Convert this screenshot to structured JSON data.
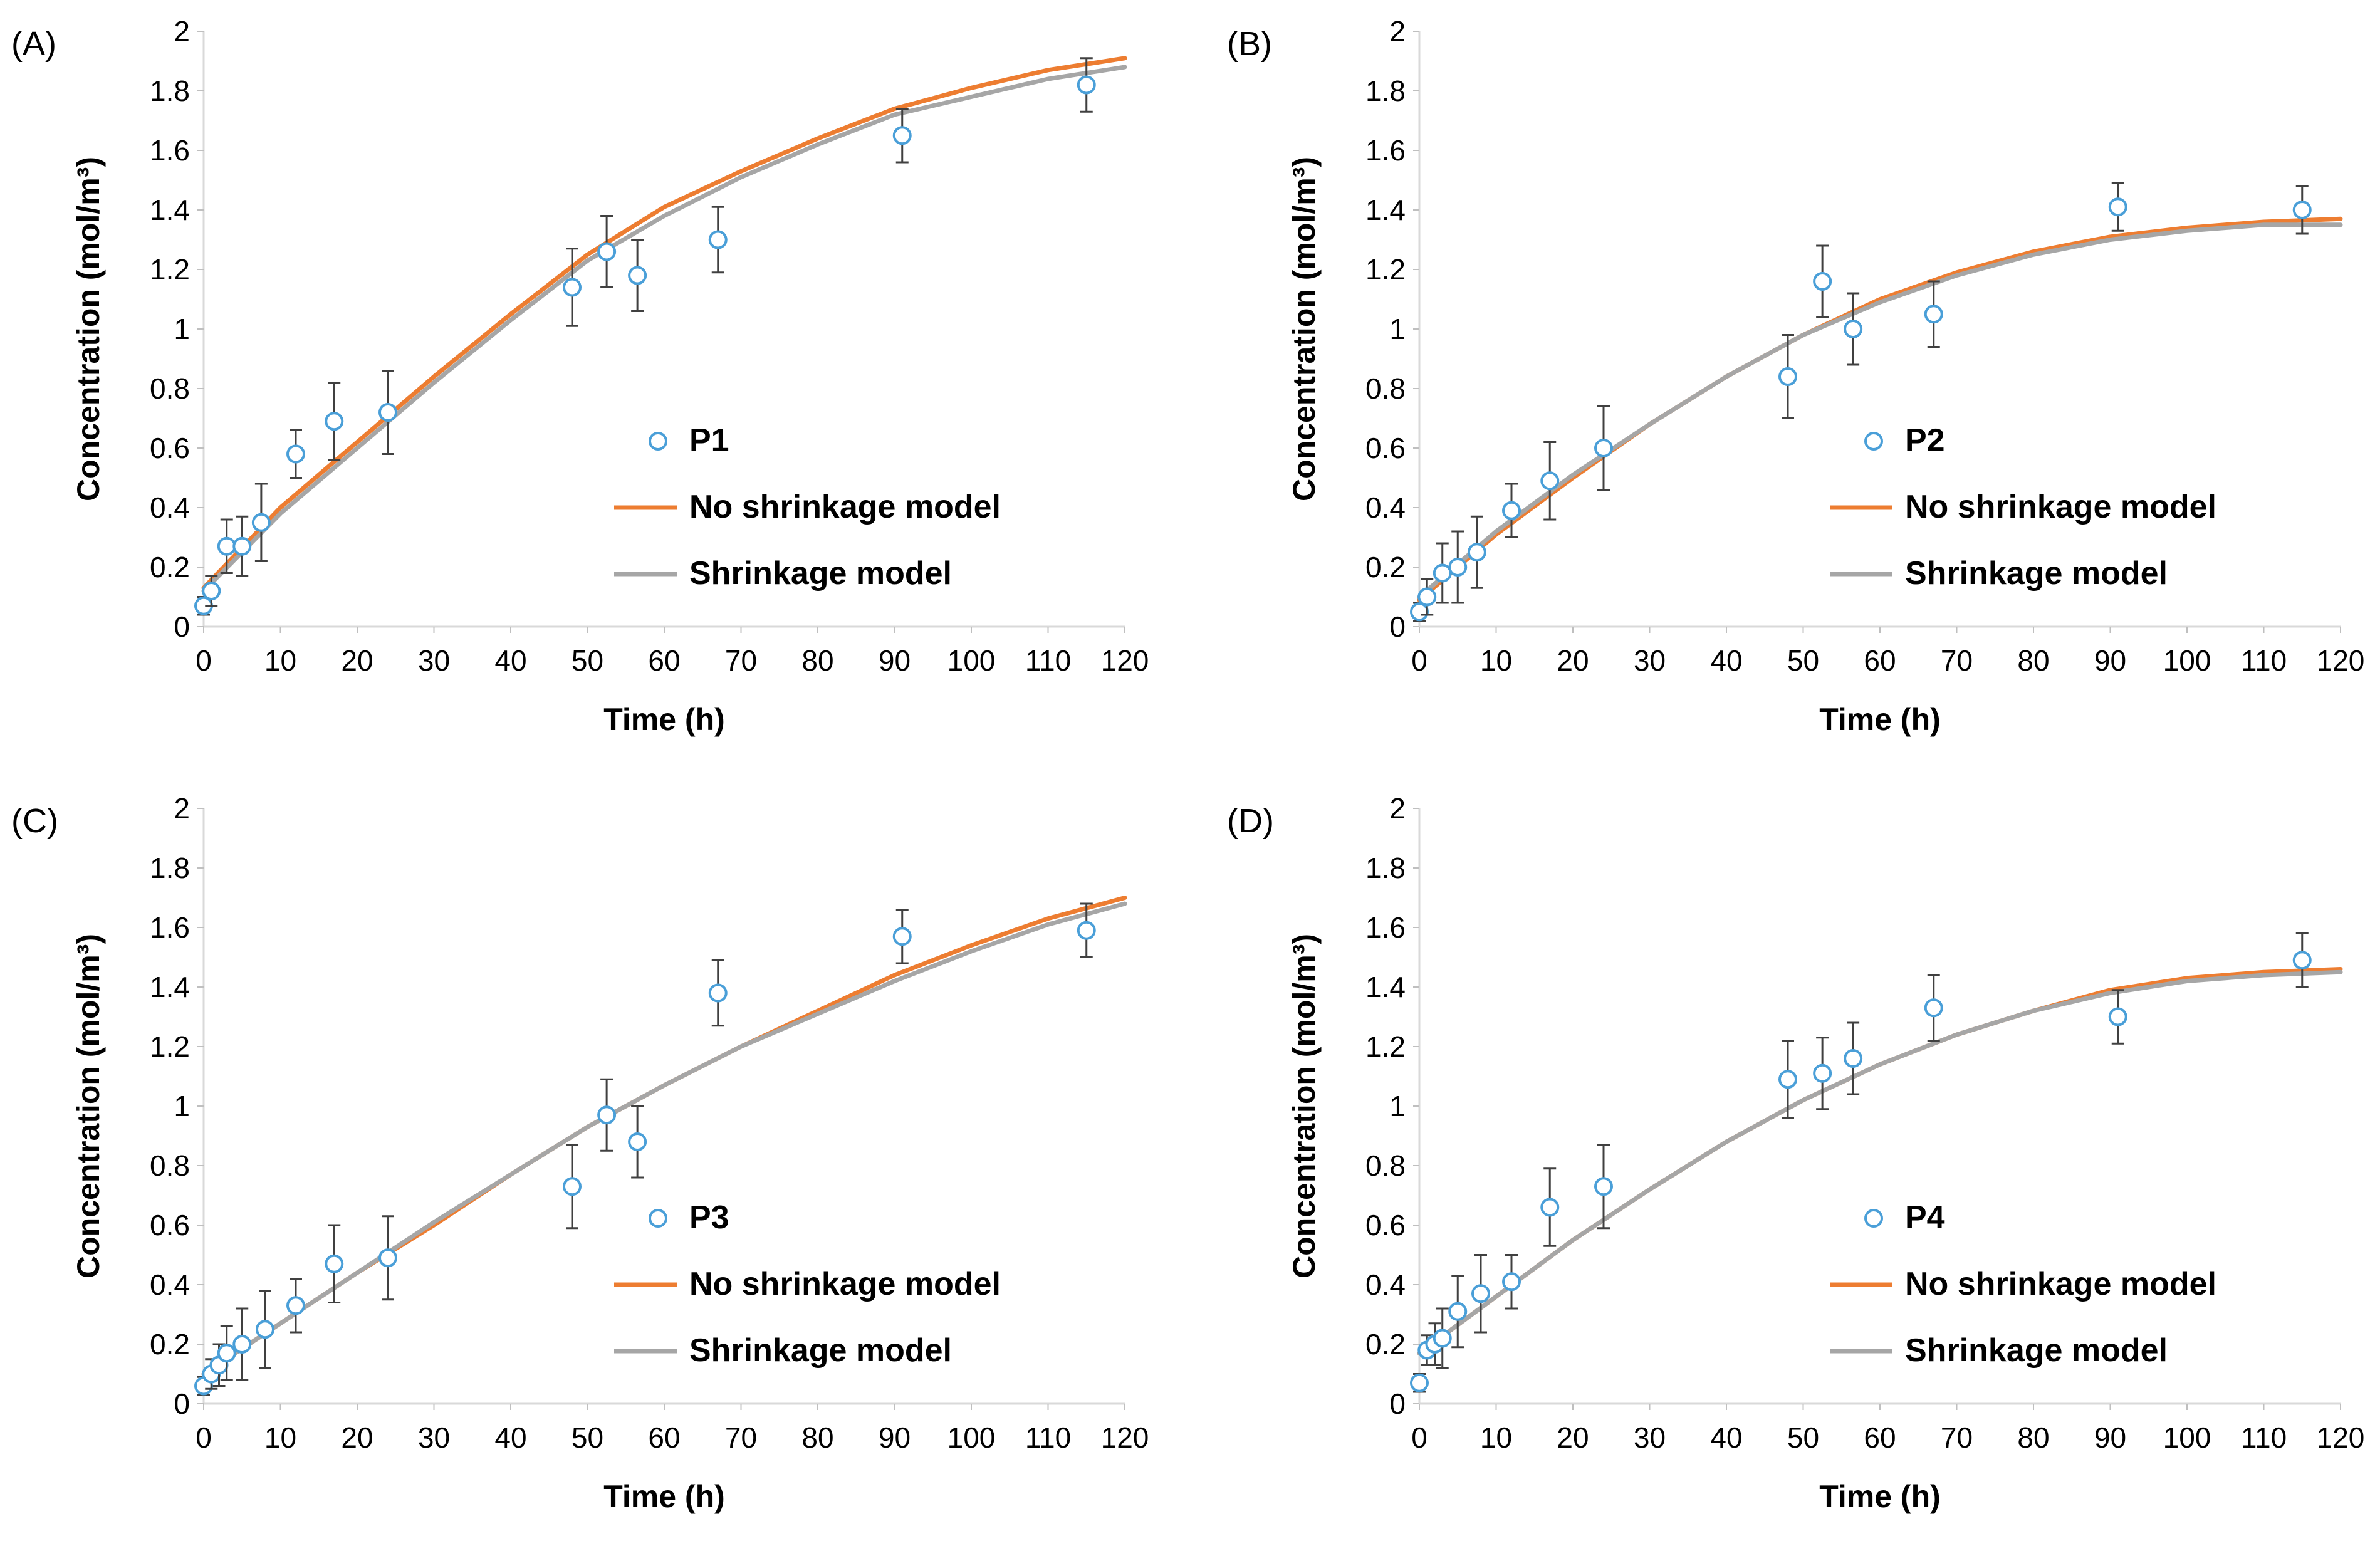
{
  "figure": {
    "colors": {
      "data": "#4a9fd8",
      "no_shrinkage": "#ed7d31",
      "shrinkage": "#a6a6a6",
      "error_bar": "#404040"
    }
  },
  "chart_data": [
    {
      "type": "scatter",
      "panel_label": "(A)",
      "xlabel": "Time (h)",
      "ylabel": "Concentration (mol/m³)",
      "xlim": [
        0,
        120
      ],
      "ylim": [
        0,
        2
      ],
      "xticks": [
        "0",
        "10",
        "20",
        "30",
        "40",
        "50",
        "60",
        "70",
        "80",
        "90",
        "100",
        "110",
        "120"
      ],
      "yticks": [
        "0",
        "0.2",
        "0.4",
        "0.6",
        "0.8",
        "1",
        "1.2",
        "1.4",
        "1.6",
        "1.8",
        "2"
      ],
      "legend": [
        "P1",
        "No shrinkage model",
        "Shrinkage model"
      ],
      "series": [
        {
          "name": "P1",
          "kind": "points",
          "x": [
            0,
            1,
            3,
            5,
            7.5,
            12,
            17,
            24,
            48,
            52.5,
            56.5,
            67,
            91,
            115
          ],
          "y": [
            0.07,
            0.12,
            0.27,
            0.27,
            0.35,
            0.58,
            0.69,
            0.72,
            1.14,
            1.26,
            1.18,
            1.3,
            1.65,
            1.82
          ],
          "err": [
            0.03,
            0.05,
            0.09,
            0.1,
            0.13,
            0.08,
            0.13,
            0.14,
            0.13,
            0.12,
            0.12,
            0.11,
            0.09,
            0.09
          ]
        },
        {
          "name": "No shrinkage model",
          "kind": "line",
          "x": [
            0,
            10,
            20,
            30,
            40,
            50,
            60,
            70,
            80,
            90,
            100,
            110,
            120
          ],
          "y": [
            0.13,
            0.4,
            0.62,
            0.84,
            1.05,
            1.25,
            1.41,
            1.53,
            1.64,
            1.74,
            1.81,
            1.87,
            1.91
          ]
        },
        {
          "name": "Shrinkage model",
          "kind": "line",
          "x": [
            0,
            10,
            20,
            30,
            40,
            50,
            60,
            70,
            80,
            90,
            100,
            110,
            120
          ],
          "y": [
            0.12,
            0.38,
            0.6,
            0.82,
            1.03,
            1.23,
            1.38,
            1.51,
            1.62,
            1.72,
            1.78,
            1.84,
            1.88
          ]
        }
      ]
    },
    {
      "type": "scatter",
      "panel_label": "(B)",
      "xlabel": "Time (h)",
      "ylabel": "Concentration (mol/m³)",
      "xlim": [
        0,
        120
      ],
      "ylim": [
        0,
        2
      ],
      "xticks": [
        "0",
        "10",
        "20",
        "30",
        "40",
        "50",
        "60",
        "70",
        "80",
        "90",
        "100",
        "110",
        "120"
      ],
      "yticks": [
        "0",
        "0.2",
        "0.4",
        "0.6",
        "0.8",
        "1",
        "1.2",
        "1.4",
        "1.6",
        "1.8",
        "2"
      ],
      "legend": [
        "P2",
        "No shrinkage model",
        "Shrinkage model"
      ],
      "series": [
        {
          "name": "P2",
          "kind": "points",
          "x": [
            0,
            1,
            3,
            5,
            7.5,
            12,
            17,
            24,
            48,
            52.5,
            56.5,
            67,
            91,
            115
          ],
          "y": [
            0.05,
            0.1,
            0.18,
            0.2,
            0.25,
            0.39,
            0.49,
            0.6,
            0.84,
            1.16,
            1.0,
            1.05,
            1.41,
            1.4
          ],
          "err": [
            0.03,
            0.06,
            0.1,
            0.12,
            0.12,
            0.09,
            0.13,
            0.14,
            0.14,
            0.12,
            0.12,
            0.11,
            0.08,
            0.08
          ]
        },
        {
          "name": "No shrinkage model",
          "kind": "line",
          "x": [
            0,
            10,
            20,
            30,
            40,
            50,
            60,
            70,
            80,
            90,
            100,
            110,
            120
          ],
          "y": [
            0.09,
            0.31,
            0.5,
            0.68,
            0.84,
            0.98,
            1.1,
            1.19,
            1.26,
            1.31,
            1.34,
            1.36,
            1.37
          ]
        },
        {
          "name": "Shrinkage model",
          "kind": "line",
          "x": [
            0,
            10,
            20,
            30,
            40,
            50,
            60,
            70,
            80,
            90,
            100,
            110,
            120
          ],
          "y": [
            0.1,
            0.32,
            0.51,
            0.68,
            0.84,
            0.98,
            1.09,
            1.18,
            1.25,
            1.3,
            1.33,
            1.35,
            1.35
          ]
        }
      ]
    },
    {
      "type": "scatter",
      "panel_label": "(C)",
      "xlabel": "Time (h)",
      "ylabel": "Concentration (mol/m³)",
      "xlim": [
        0,
        120
      ],
      "ylim": [
        0,
        2
      ],
      "xticks": [
        "0",
        "10",
        "20",
        "30",
        "40",
        "50",
        "60",
        "70",
        "80",
        "90",
        "100",
        "110",
        "120"
      ],
      "yticks": [
        "0",
        "0.2",
        "0.4",
        "0.6",
        "0.8",
        "1",
        "1.2",
        "1.4",
        "1.6",
        "1.8",
        "2"
      ],
      "legend": [
        "P3",
        "No shrinkage model",
        "Shrinkage model"
      ],
      "series": [
        {
          "name": "P3",
          "kind": "points",
          "x": [
            0,
            1,
            2,
            3,
            5,
            8,
            12,
            17,
            24,
            48,
            52.5,
            56.5,
            67,
            91,
            115
          ],
          "y": [
            0.06,
            0.1,
            0.13,
            0.17,
            0.2,
            0.25,
            0.33,
            0.47,
            0.49,
            0.73,
            0.97,
            0.88,
            1.38,
            1.57,
            1.59
          ],
          "err": [
            0.03,
            0.05,
            0.07,
            0.09,
            0.12,
            0.13,
            0.09,
            0.13,
            0.14,
            0.14,
            0.12,
            0.12,
            0.11,
            0.09,
            0.09
          ]
        },
        {
          "name": "No shrinkage model",
          "kind": "line",
          "x": [
            0,
            10,
            20,
            30,
            40,
            50,
            60,
            70,
            80,
            90,
            100,
            110,
            120
          ],
          "y": [
            0.1,
            0.27,
            0.44,
            0.6,
            0.77,
            0.93,
            1.07,
            1.2,
            1.32,
            1.44,
            1.54,
            1.63,
            1.7
          ]
        },
        {
          "name": "Shrinkage model",
          "kind": "line",
          "x": [
            0,
            10,
            20,
            30,
            40,
            50,
            60,
            70,
            80,
            90,
            100,
            110,
            120
          ],
          "y": [
            0.1,
            0.27,
            0.44,
            0.61,
            0.77,
            0.93,
            1.07,
            1.2,
            1.31,
            1.42,
            1.52,
            1.61,
            1.68
          ]
        }
      ]
    },
    {
      "type": "scatter",
      "panel_label": "(D)",
      "xlabel": "Time (h)",
      "ylabel": "Concentration (mol/m³)",
      "xlim": [
        0,
        120
      ],
      "ylim": [
        0,
        2
      ],
      "xticks": [
        "0",
        "10",
        "20",
        "30",
        "40",
        "50",
        "60",
        "70",
        "80",
        "90",
        "100",
        "110",
        "120"
      ],
      "yticks": [
        "0",
        "0.2",
        "0.4",
        "0.6",
        "0.8",
        "1",
        "1.2",
        "1.4",
        "1.6",
        "1.8",
        "2"
      ],
      "legend": [
        "P4",
        "No shrinkage model",
        "Shrinkage model"
      ],
      "series": [
        {
          "name": "P4",
          "kind": "points",
          "x": [
            0,
            1,
            2,
            3,
            5,
            8,
            12,
            17,
            24,
            48,
            52.5,
            56.5,
            67,
            91,
            115
          ],
          "y": [
            0.07,
            0.18,
            0.2,
            0.22,
            0.31,
            0.37,
            0.41,
            0.66,
            0.73,
            1.09,
            1.11,
            1.16,
            1.33,
            1.3,
            1.49
          ],
          "err": [
            0.03,
            0.05,
            0.07,
            0.1,
            0.12,
            0.13,
            0.09,
            0.13,
            0.14,
            0.13,
            0.12,
            0.12,
            0.11,
            0.09,
            0.09
          ]
        },
        {
          "name": "No shrinkage model",
          "kind": "line",
          "x": [
            0,
            10,
            20,
            30,
            40,
            50,
            60,
            70,
            80,
            90,
            100,
            110,
            120
          ],
          "y": [
            0.17,
            0.36,
            0.55,
            0.72,
            0.88,
            1.02,
            1.14,
            1.24,
            1.32,
            1.39,
            1.43,
            1.45,
            1.46
          ]
        },
        {
          "name": "Shrinkage model",
          "kind": "line",
          "x": [
            0,
            10,
            20,
            30,
            40,
            50,
            60,
            70,
            80,
            90,
            100,
            110,
            120
          ],
          "y": [
            0.17,
            0.36,
            0.55,
            0.72,
            0.88,
            1.02,
            1.14,
            1.24,
            1.32,
            1.38,
            1.42,
            1.44,
            1.45
          ]
        }
      ]
    }
  ]
}
